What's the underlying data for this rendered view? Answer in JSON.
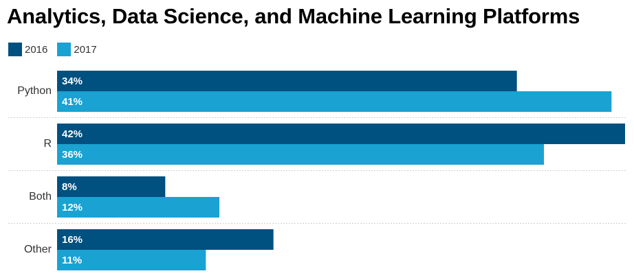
{
  "chart_data": {
    "type": "bar",
    "orientation": "horizontal",
    "title": "Analytics, Data Science, and Machine Learning Platforms",
    "categories": [
      "Python",
      "R",
      "Both",
      "Other"
    ],
    "series": [
      {
        "name": "2016",
        "values": [
          34,
          42,
          8,
          16
        ],
        "labels": [
          "34%",
          "42%",
          "8%",
          "16%"
        ],
        "color": "#005080"
      },
      {
        "name": "2017",
        "values": [
          41,
          36,
          12,
          11
        ],
        "labels": [
          "41%",
          "36%",
          "12%",
          "11%"
        ],
        "color": "#19a2d2"
      }
    ],
    "xlim": [
      0,
      42
    ],
    "unit": "%",
    "legend_position": "top-left",
    "separators": "dotted"
  }
}
